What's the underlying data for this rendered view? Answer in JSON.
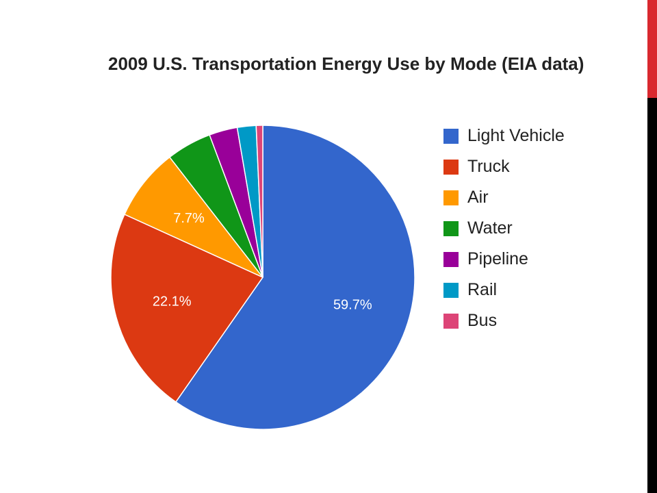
{
  "slide": {
    "accent_color": "#d9282f",
    "bar_color": "#000000"
  },
  "chart_data": {
    "type": "pie",
    "title": "2009 U.S. Transportation Energy Use by Mode (EIA data)",
    "categories": [
      "Light Vehicle",
      "Truck",
      "Air",
      "Water",
      "Pipeline",
      "Rail",
      "Bus"
    ],
    "values": [
      59.7,
      22.1,
      7.7,
      4.8,
      3.0,
      2.0,
      0.7
    ],
    "value_labels": [
      "59.7%",
      "22.1%",
      "7.7%",
      "",
      "",
      "",
      ""
    ],
    "colors": [
      "#3366cc",
      "#dc3912",
      "#ff9900",
      "#109618",
      "#990099",
      "#0099c6",
      "#dd4477"
    ],
    "legend_position": "right"
  }
}
